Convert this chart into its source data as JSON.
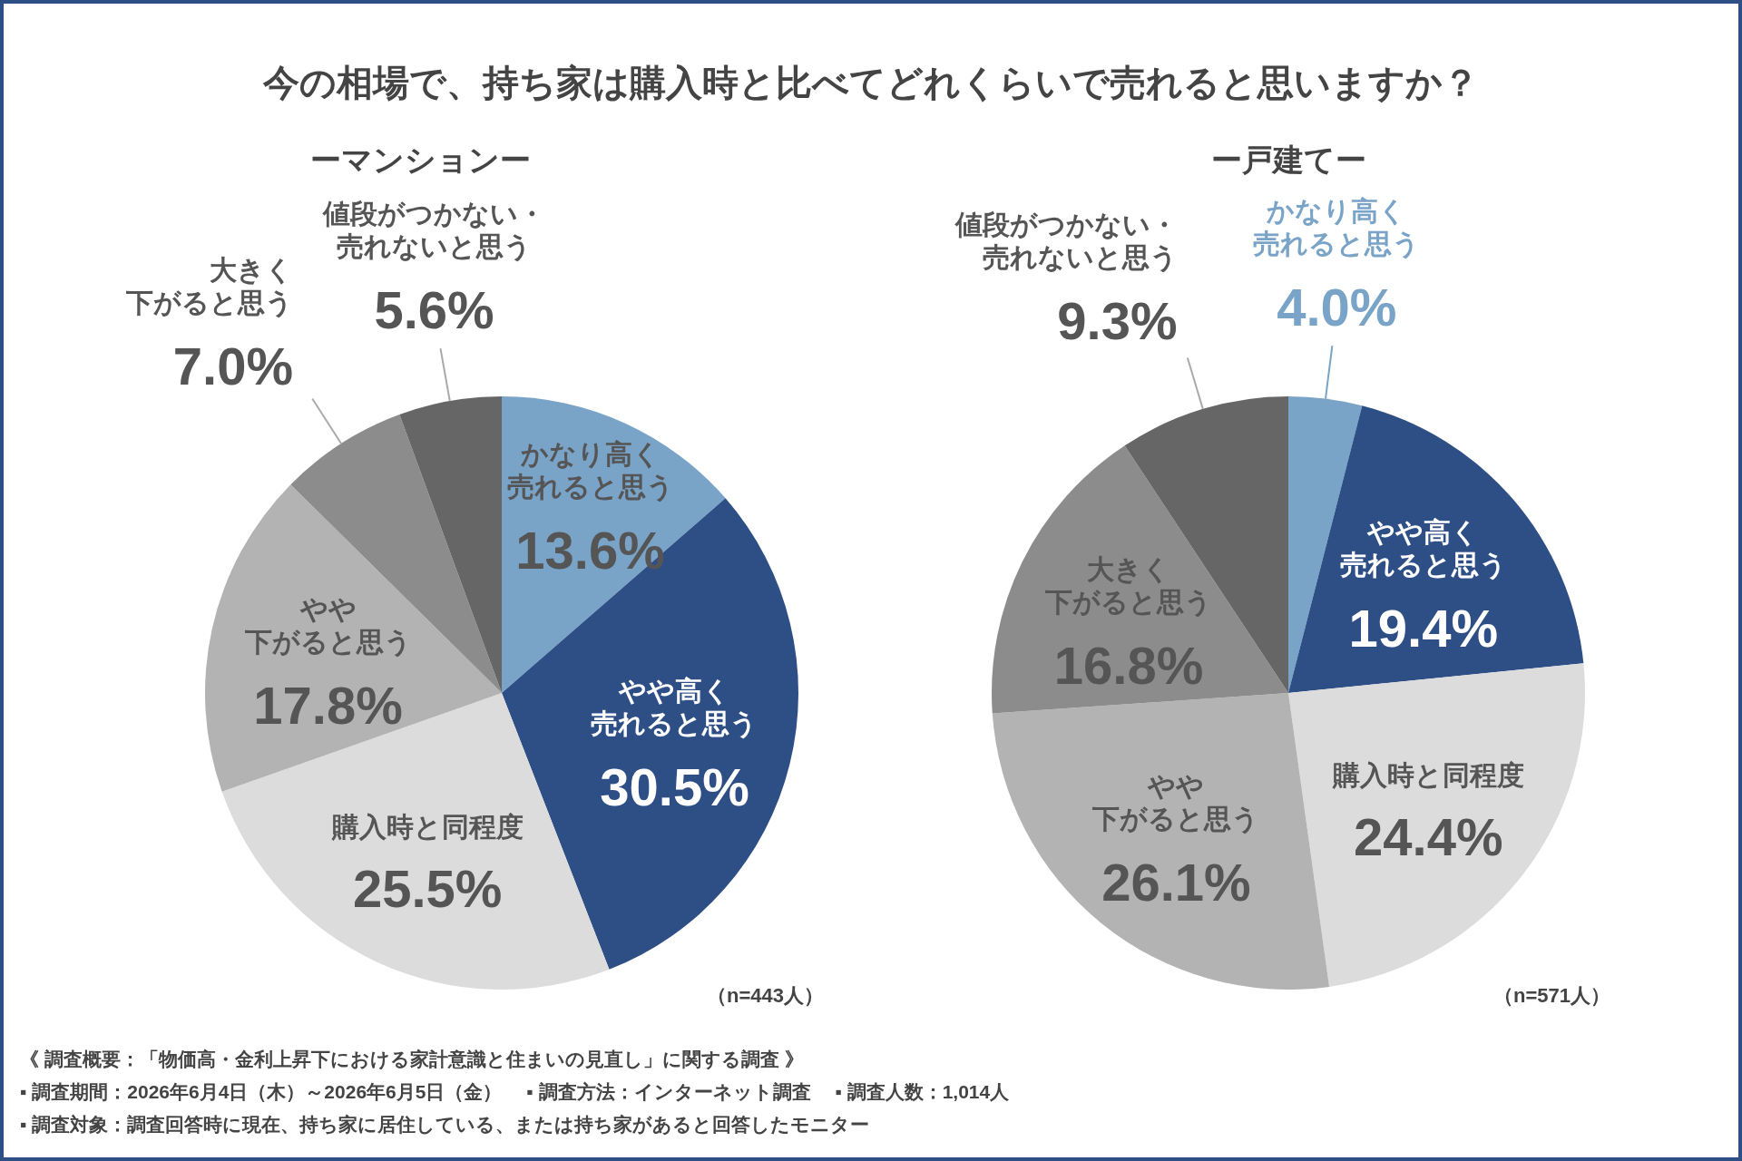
{
  "chart_data": [
    {
      "type": "pie",
      "title": "今の相場で、持ち家は購入時と比べてどれくらいで売れると思いますか？",
      "subtitle": "ーマンションー",
      "categories": [
        "かなり高く売れると思う",
        "やや高く売れると思う",
        "購入時と同程度",
        "やや下がると思う",
        "大きく下がると思う",
        "値段がつかない・売れないと思う"
      ],
      "values": [
        13.6,
        30.5,
        25.5,
        17.8,
        7.0,
        5.6
      ],
      "value_labels": [
        "13.6%",
        "30.5%",
        "25.5%",
        "17.8%",
        "7.0%",
        "5.6%"
      ],
      "colors": [
        "#7aa3c8",
        "#2e4e86",
        "#dcdcdc",
        "#b3b3b3",
        "#8c8c8c",
        "#666666"
      ],
      "annotations": [
        "（n=443人）",
        "《 調査概要：「物価高・金利上昇下における家計意識と住まいの見直し」に関する調査 》",
        "▪ 調査期間：2026年6月4日（木）～2026年6月5日（金）　 ▪ 調査方法：インターネット調査　 ▪ 調査人数：1,014人",
        "▪ 調査対象：調査回答時に現在、持ち家に居住している、または持ち家があると回答したモニター"
      ]
    },
    {
      "type": "pie",
      "subtitle": "ー戸建てー",
      "categories": [
        "かなり高く売れると思う",
        "やや高く売れると思う",
        "購入時と同程度",
        "やや下がると思う",
        "大きく下がると思う",
        "値段がつかない・売れないと思う"
      ],
      "values": [
        4.0,
        19.4,
        24.4,
        26.1,
        16.8,
        9.3
      ],
      "value_labels": [
        "4.0%",
        "19.4%",
        "24.4%",
        "26.1%",
        "16.8%",
        "9.3%"
      ],
      "colors": [
        "#7aa3c8",
        "#2e4e86",
        "#dcdcdc",
        "#b3b3b3",
        "#8c8c8c",
        "#666666"
      ],
      "annotations": [
        "（n=571人）"
      ]
    }
  ]
}
